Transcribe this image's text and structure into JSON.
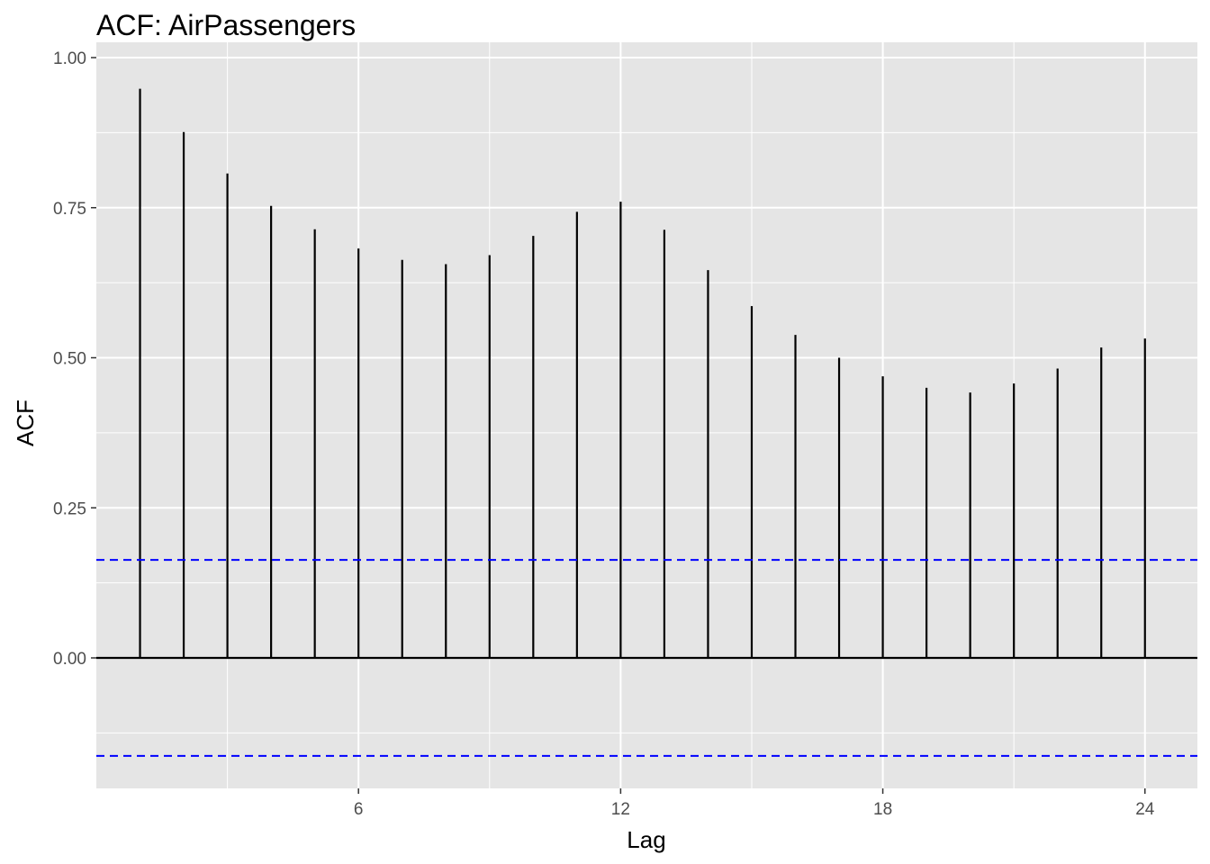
{
  "chart_data": {
    "type": "bar",
    "title": "ACF: AirPassengers",
    "xlabel": "Lag",
    "ylabel": "ACF",
    "x": [
      1,
      2,
      3,
      4,
      5,
      6,
      7,
      8,
      9,
      10,
      11,
      12,
      13,
      14,
      15,
      16,
      17,
      18,
      19,
      20,
      21,
      22,
      23,
      24
    ],
    "values": [
      0.948,
      0.876,
      0.807,
      0.753,
      0.714,
      0.682,
      0.663,
      0.656,
      0.671,
      0.703,
      0.743,
      0.76,
      0.713,
      0.646,
      0.586,
      0.538,
      0.5,
      0.469,
      0.45,
      0.442,
      0.457,
      0.482,
      0.517,
      0.532
    ],
    "confidence_bound": 0.1633,
    "xlim": [
      0,
      25.2
    ],
    "ylim": [
      -0.216,
      1.0
    ],
    "x_ticks": [
      6,
      12,
      18,
      24
    ],
    "x_tick_labels": [
      "6",
      "12",
      "18",
      "24"
    ],
    "y_ticks": [
      0,
      0.25,
      0.5,
      0.75,
      1.0
    ],
    "y_tick_labels": [
      "0.00",
      "0.25",
      "0.50",
      "0.75",
      "1.00"
    ],
    "grid": true,
    "colors": {
      "panel": "#e5e5e5",
      "grid": "#ffffff",
      "bars": "#000000",
      "confidence": "#0000ff"
    }
  }
}
